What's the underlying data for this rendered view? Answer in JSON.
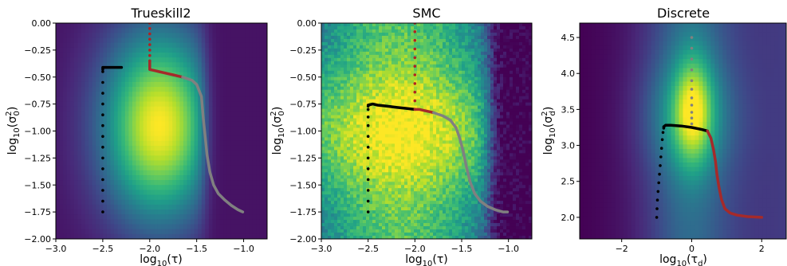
{
  "chart_data": [
    {
      "type": "heatmap",
      "title": "Trueskill2",
      "xlabel": "log10(τ)",
      "ylabel": "log10(σ0²)",
      "xlim": [
        -3.0,
        -0.75
      ],
      "ylim": [
        -2.0,
        0.0
      ],
      "xticks": [
        "−3.0",
        "−2.5",
        "−2.0",
        "−1.5",
        "−1.0"
      ],
      "xtick_values": [
        -3.0,
        -2.5,
        -2.0,
        -1.5,
        -1.0
      ],
      "yticks": [
        "0.00",
        "−0.25",
        "−0.50",
        "−0.75",
        "−1.00",
        "−1.25",
        "−1.50",
        "−1.75",
        "−2.00"
      ],
      "ytick_values": [
        0.0,
        -0.25,
        -0.5,
        -0.75,
        -1.0,
        -1.25,
        -1.5,
        -1.75,
        -2.0
      ],
      "colormap": "viridis",
      "series": [
        {
          "color": "#000000",
          "style": "dots",
          "x": [
            -2.5,
            -2.5,
            -2.5,
            -2.5,
            -2.5,
            -2.5,
            -2.5,
            -2.5,
            -2.5,
            -2.5,
            -2.5,
            -2.5,
            -2.5,
            -2.5
          ],
          "y": [
            -1.75,
            -1.65,
            -1.55,
            -1.45,
            -1.35,
            -1.25,
            -1.15,
            -1.05,
            -0.95,
            -0.85,
            -0.75,
            -0.65,
            -0.55,
            -0.45
          ]
        },
        {
          "color": "#000000",
          "style": "line",
          "x": [
            -2.5,
            -2.5,
            -2.45,
            -2.4,
            -2.35,
            -2.3
          ],
          "y": [
            -0.43,
            -0.41,
            -0.41,
            -0.41,
            -0.41,
            -0.41
          ]
        },
        {
          "color": "#b22222",
          "style": "dots",
          "x": [
            -2.0,
            -2.0,
            -2.0,
            -2.0,
            -2.0,
            -2.0,
            -2.0,
            -2.0
          ],
          "y": [
            0.0,
            -0.05,
            -0.1,
            -0.15,
            -0.2,
            -0.25,
            -0.3,
            -0.35
          ]
        },
        {
          "color": "#a52a2a",
          "style": "line",
          "x": [
            -2.0,
            -2.0,
            -1.95,
            -1.9,
            -1.85,
            -1.8,
            -1.75,
            -1.7,
            -1.65
          ],
          "y": [
            -0.35,
            -0.43,
            -0.44,
            -0.45,
            -0.46,
            -0.47,
            -0.48,
            -0.49,
            -0.5
          ]
        },
        {
          "color": "#808080",
          "style": "line",
          "x": [
            -1.65,
            -1.55,
            -1.5,
            -1.45,
            -1.43,
            -1.41,
            -1.39,
            -1.36,
            -1.32,
            -1.27,
            -1.2,
            -1.13,
            -1.06,
            -1.01
          ],
          "y": [
            -0.5,
            -0.53,
            -0.57,
            -0.68,
            -0.88,
            -1.05,
            -1.22,
            -1.38,
            -1.5,
            -1.58,
            -1.64,
            -1.69,
            -1.73,
            -1.75
          ]
        }
      ]
    },
    {
      "type": "heatmap",
      "title": "SMC",
      "xlabel": "log10(τ)",
      "ylabel": "log10(σ0²)",
      "xlim": [
        -3.0,
        -0.75
      ],
      "ylim": [
        -2.0,
        0.0
      ],
      "xticks": [
        "−3.0",
        "−2.5",
        "−2.0",
        "−1.5",
        "−1.0"
      ],
      "xtick_values": [
        -3.0,
        -2.5,
        -2.0,
        -1.5,
        -1.0
      ],
      "yticks": [
        "0.00",
        "−0.25",
        "−0.50",
        "−0.75",
        "−1.00",
        "−1.25",
        "−1.50",
        "−1.75",
        "−2.00"
      ],
      "ytick_values": [
        0.0,
        -0.25,
        -0.5,
        -0.75,
        -1.0,
        -1.25,
        -1.5,
        -1.75,
        -2.0
      ],
      "colormap": "viridis",
      "series": [
        {
          "color": "#000000",
          "style": "dots",
          "x": [
            -2.5,
            -2.5,
            -2.5,
            -2.5,
            -2.5,
            -2.5,
            -2.5,
            -2.5,
            -2.5,
            -2.5,
            -2.5,
            -2.5
          ],
          "y": [
            -1.75,
            -1.65,
            -1.55,
            -1.45,
            -1.35,
            -1.25,
            -1.15,
            -1.05,
            -0.95,
            -0.87,
            -0.8,
            -0.77
          ]
        },
        {
          "color": "#000000",
          "style": "line",
          "x": [
            -2.5,
            -2.45,
            -2.4,
            -2.3,
            -2.2,
            -2.1,
            -2.0
          ],
          "y": [
            -0.76,
            -0.75,
            -0.76,
            -0.77,
            -0.78,
            -0.79,
            -0.8
          ]
        },
        {
          "color": "#b22222",
          "style": "dots",
          "x": [
            -2.0,
            -2.0,
            -2.0,
            -2.0,
            -2.0,
            -2.0,
            -2.0,
            -2.0,
            -2.0,
            -2.0
          ],
          "y": [
            0.0,
            -0.08,
            -0.16,
            -0.24,
            -0.32,
            -0.4,
            -0.48,
            -0.56,
            -0.64,
            -0.72
          ]
        },
        {
          "color": "#a52a2a",
          "style": "line",
          "x": [
            -2.0,
            -1.95,
            -1.9,
            -1.85,
            -1.8
          ],
          "y": [
            -0.8,
            -0.8,
            -0.81,
            -0.82,
            -0.83
          ]
        },
        {
          "color": "#808080",
          "style": "line",
          "x": [
            -1.8,
            -1.7,
            -1.62,
            -1.56,
            -1.52,
            -1.48,
            -1.45,
            -1.41,
            -1.36,
            -1.3,
            -1.22,
            -1.14,
            -1.06,
            -1.01
          ],
          "y": [
            -0.83,
            -0.86,
            -0.9,
            -0.97,
            -1.07,
            -1.2,
            -1.33,
            -1.47,
            -1.58,
            -1.65,
            -1.7,
            -1.73,
            -1.75,
            -1.75
          ]
        }
      ]
    },
    {
      "type": "heatmap",
      "title": "Discrete",
      "xlabel": "log10(τd)",
      "ylabel": "log10(σd²)",
      "xlim": [
        -3.2,
        2.7
      ],
      "ylim": [
        1.7,
        4.7
      ],
      "xticks": [
        "−2",
        "0",
        "2"
      ],
      "xtick_values": [
        -2,
        0,
        2
      ],
      "yticks": [
        "2.0",
        "2.5",
        "3.0",
        "3.5",
        "4.0",
        "4.5"
      ],
      "ytick_values": [
        2.0,
        2.5,
        3.0,
        3.5,
        4.0,
        4.5
      ],
      "colormap": "viridis",
      "series": [
        {
          "color": "#000000",
          "style": "dots",
          "x": [
            -1.0,
            -0.99,
            -0.98,
            -0.96,
            -0.94,
            -0.92,
            -0.9,
            -0.88,
            -0.86,
            -0.84,
            -0.82,
            -0.8
          ],
          "y": [
            2.0,
            2.12,
            2.24,
            2.36,
            2.48,
            2.6,
            2.72,
            2.84,
            2.96,
            3.08,
            3.18,
            3.24
          ]
        },
        {
          "color": "#000000",
          "style": "line",
          "x": [
            -0.8,
            -0.75,
            -0.6,
            -0.3,
            0.0,
            0.3,
            0.45
          ],
          "y": [
            3.26,
            3.28,
            3.28,
            3.27,
            3.25,
            3.22,
            3.2
          ]
        },
        {
          "color": "#808080",
          "style": "dots",
          "x": [
            0.0,
            0.0,
            0.0,
            0.0,
            0.0,
            0.0,
            0.0,
            0.0,
            0.0,
            0.0,
            0.0
          ],
          "y": [
            4.5,
            4.35,
            4.2,
            4.05,
            3.9,
            3.78,
            3.66,
            3.56,
            3.46,
            3.38,
            3.3
          ]
        },
        {
          "color": "#a52a2a",
          "style": "line",
          "x": [
            0.45,
            0.55,
            0.62,
            0.68,
            0.72,
            0.78,
            0.85,
            0.95,
            1.1,
            1.3,
            1.6,
            2.0
          ],
          "y": [
            3.2,
            3.1,
            2.95,
            2.78,
            2.6,
            2.42,
            2.25,
            2.12,
            2.06,
            2.03,
            2.01,
            2.0
          ]
        }
      ]
    }
  ]
}
